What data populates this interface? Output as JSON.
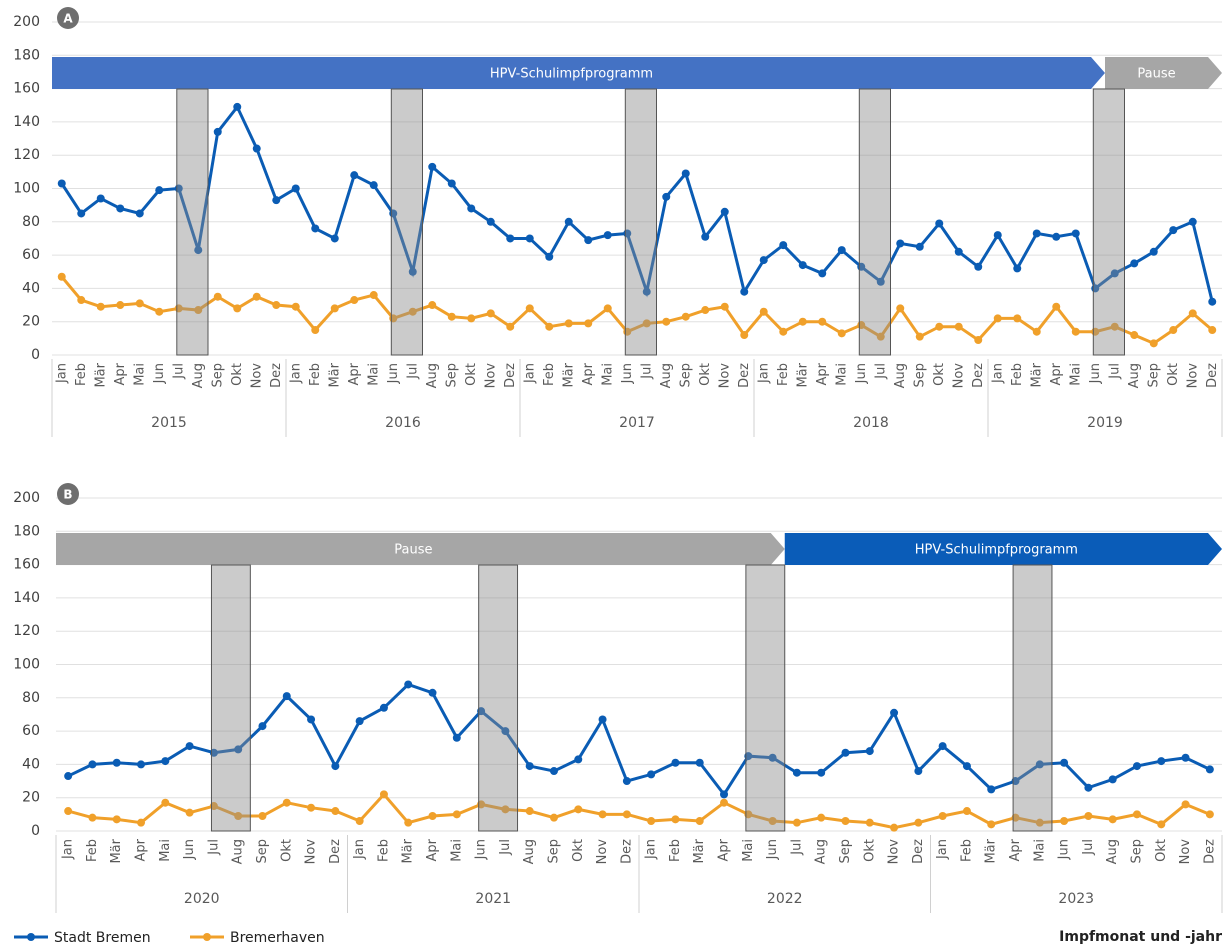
{
  "chart_data": [
    {
      "type": "line",
      "label": "A",
      "categories": [
        "Jan",
        "Feb",
        "Mär",
        "Apr",
        "Mai",
        "Jun",
        "Jul",
        "Aug",
        "Sep",
        "Okt",
        "Nov",
        "Dez",
        "Jan",
        "Feb",
        "Mär",
        "Apr",
        "Mai",
        "Jun",
        "Jul",
        "Aug",
        "Sep",
        "Okt",
        "Nov",
        "Dez",
        "Jan",
        "Feb",
        "Mär",
        "Apr",
        "Mai",
        "Jun",
        "Jul",
        "Aug",
        "Sep",
        "Okt",
        "Nov",
        "Dez",
        "Jan",
        "Feb",
        "Mär",
        "Apr",
        "Mai",
        "Jun",
        "Jul",
        "Aug",
        "Sep",
        "Okt",
        "Nov",
        "Dez",
        "Jan",
        "Feb",
        "Mär",
        "Apr",
        "Mai",
        "Jun",
        "Jul",
        "Aug",
        "Sep",
        "Okt",
        "Nov",
        "Dez"
      ],
      "groups": [
        "2015",
        "2016",
        "2017",
        "2018",
        "2019"
      ],
      "series": [
        {
          "name": "Stadt Bremen",
          "color": "#0a5cb4",
          "values": [
            103,
            85,
            94,
            88,
            85,
            99,
            100,
            63,
            134,
            149,
            124,
            93,
            100,
            76,
            70,
            108,
            102,
            85,
            50,
            113,
            103,
            88,
            80,
            70,
            70,
            59,
            80,
            69,
            72,
            73,
            38,
            95,
            109,
            71,
            86,
            38,
            57,
            66,
            54,
            49,
            63,
            53,
            44,
            67,
            65,
            79,
            62,
            53,
            72,
            52,
            73,
            71,
            73,
            40,
            49,
            55,
            62,
            75,
            80,
            32
          ]
        },
        {
          "name": "Bremerhaven",
          "color": "#f0a02a",
          "values": [
            47,
            33,
            29,
            30,
            31,
            26,
            28,
            27,
            35,
            28,
            35,
            30,
            29,
            15,
            28,
            33,
            36,
            22,
            26,
            30,
            23,
            22,
            25,
            17,
            28,
            17,
            19,
            19,
            28,
            14,
            19,
            20,
            23,
            27,
            29,
            12,
            26,
            14,
            20,
            20,
            13,
            18,
            11,
            28,
            11,
            17,
            17,
            9,
            22,
            22,
            14,
            29,
            14,
            14,
            17,
            12,
            7,
            15,
            25,
            15
          ]
        }
      ],
      "phases": [
        {
          "label": "HPV-Schulimpfprogramm",
          "start": 0,
          "end": 53,
          "color": "#4472c4"
        },
        {
          "label": "Pause",
          "start": 54,
          "end": 59,
          "color": "#a6a6a6"
        }
      ],
      "shaded": [
        [
          6,
          7
        ],
        [
          17,
          18
        ],
        [
          29,
          30
        ],
        [
          41,
          42
        ],
        [
          53,
          54
        ]
      ],
      "ylim": [
        0,
        200
      ],
      "yticks": [
        0,
        20,
        40,
        60,
        80,
        100,
        120,
        140,
        160,
        180,
        200
      ],
      "grid": true
    },
    {
      "type": "line",
      "label": "B",
      "categories": [
        "Jan",
        "Feb",
        "Mär",
        "Apr",
        "Mai",
        "Jun",
        "Jul",
        "Aug",
        "Sep",
        "Okt",
        "Nov",
        "Dez",
        "Jan",
        "Feb",
        "Mär",
        "Apr",
        "Mai",
        "Jun",
        "Jul",
        "Aug",
        "Sep",
        "Okt",
        "Nov",
        "Dez",
        "Jan",
        "Feb",
        "Mär",
        "Apr",
        "Mai",
        "Jun",
        "Jul",
        "Aug",
        "Sep",
        "Okt",
        "Nov",
        "Dez",
        "Jan",
        "Feb",
        "Mär",
        "Apr",
        "Mai",
        "Jun",
        "Jul",
        "Aug",
        "Sep",
        "Okt",
        "Nov",
        "Dez"
      ],
      "groups": [
        "2020",
        "2021",
        "2022",
        "2023"
      ],
      "series": [
        {
          "color": "#0a5cb4",
          "values": [
            33,
            40,
            41,
            40,
            42,
            51,
            47,
            49,
            63,
            81,
            67,
            39,
            66,
            74,
            88,
            83,
            56,
            72,
            60,
            39,
            36,
            43,
            67,
            30,
            34,
            41,
            41,
            22,
            45,
            44,
            35,
            35,
            47,
            48,
            71,
            36,
            51,
            39,
            25,
            30,
            40,
            41,
            26,
            31,
            39,
            42,
            44,
            37
          ]
        },
        {
          "color": "#f0a02a",
          "values": [
            12,
            8,
            7,
            5,
            17,
            11,
            15,
            9,
            9,
            17,
            14,
            12,
            6,
            22,
            5,
            9,
            10,
            16,
            13,
            12,
            8,
            13,
            10,
            10,
            6,
            7,
            6,
            17,
            10,
            6,
            5,
            8,
            6,
            5,
            2,
            5,
            9,
            12,
            4,
            8,
            5,
            6,
            9,
            7,
            10,
            4,
            16,
            10
          ]
        }
      ],
      "phases": [
        {
          "label": "Pause",
          "start": 0,
          "end": 29,
          "color": "#a6a6a6"
        },
        {
          "label": "HPV-Schulimpfprogramm",
          "start": 30,
          "end": 47,
          "color": "#0a5cb8"
        }
      ],
      "shaded": [
        [
          6,
          7
        ],
        [
          17,
          18
        ],
        [
          28,
          29
        ],
        [
          39,
          40
        ]
      ],
      "ylim": [
        0,
        200
      ],
      "yticks": [
        0,
        20,
        40,
        60,
        80,
        100,
        120,
        140,
        160,
        180,
        200
      ],
      "grid": true,
      "xlabel": "Impfmonat und -jahr"
    }
  ]
}
